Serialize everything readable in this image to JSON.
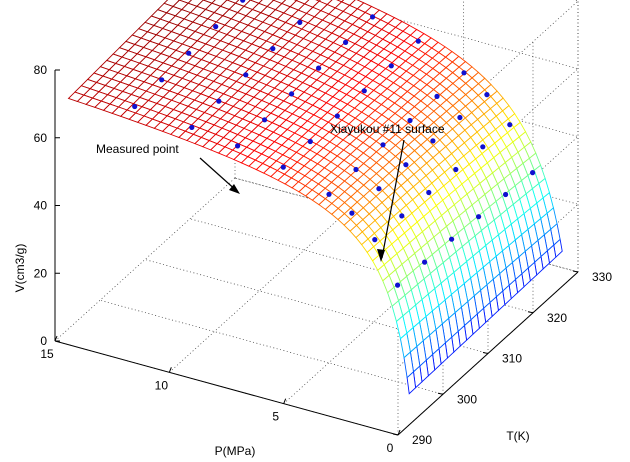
{
  "chart_data": {
    "type": "surface3d",
    "title": "",
    "xlabel": "P(MPa)",
    "ylabel": "T(K)",
    "zlabel": "V(cm3/g)",
    "xlim": [
      0,
      15
    ],
    "ylim": [
      290,
      330
    ],
    "zlim": [
      0,
      80
    ],
    "x_ticks": [
      "0",
      "5",
      "10",
      "15"
    ],
    "y_ticks": [
      "290",
      "300",
      "310",
      "320",
      "330"
    ],
    "z_ticks": [
      "0",
      "20",
      "40",
      "60",
      "80"
    ],
    "grid": true,
    "colormap": "jet",
    "annotations": [
      {
        "text": "Measured point"
      },
      {
        "text": "Xiayukou #11 surface"
      }
    ],
    "surface_model": {
      "description_note": "",
      "P_range": [
        0.1,
        15
      ],
      "T_range": [
        293,
        327
      ],
      "V_at_P15_T293": 65,
      "V_at_P15_T327": 67,
      "V_at_P0_1_T293": 3,
      "V_at_P0_1_T327": 6
    },
    "measured_points": {
      "T": [
        295,
        301,
        307,
        313,
        319,
        325
      ],
      "P": [
        1,
        2,
        3,
        4,
        6,
        8,
        10,
        12.5
      ]
    },
    "marker_color": "#1010d0"
  }
}
